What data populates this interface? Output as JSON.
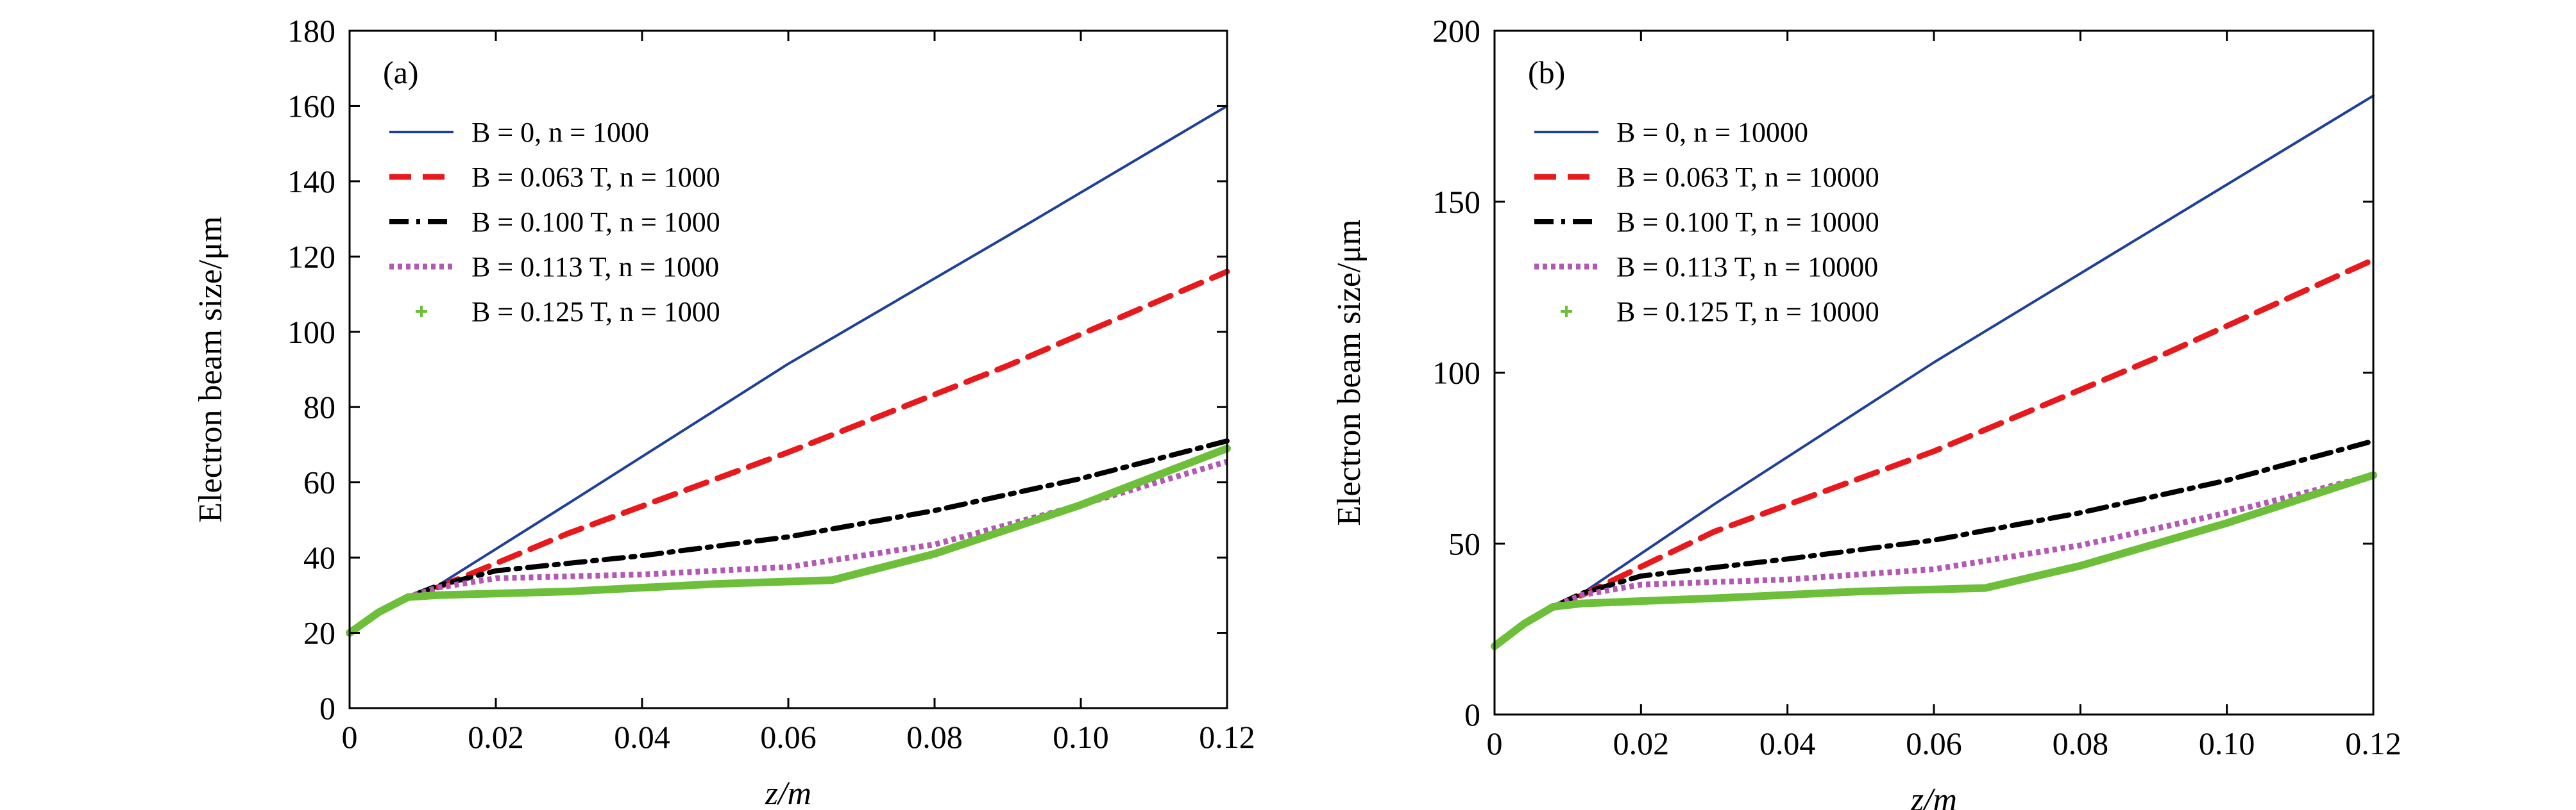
{
  "chart_data": [
    {
      "type": "line",
      "panel_label": "(a)",
      "xlabel": "z/m",
      "ylabel": "Electron beam size/μm",
      "xlim": [
        0,
        0.12
      ],
      "ylim": [
        0,
        180
      ],
      "xticks": [
        0,
        0.02,
        0.04,
        0.06,
        0.08,
        0.1,
        0.12
      ],
      "xtick_labels": [
        "0",
        "0.02",
        "0.04",
        "0.06",
        "0.08",
        "0.10",
        "0.12"
      ],
      "yticks": [
        0,
        20,
        40,
        60,
        80,
        100,
        120,
        140,
        160,
        180
      ],
      "ytick_labels": [
        "0",
        "20",
        "40",
        "60",
        "80",
        "100",
        "120",
        "140",
        "160",
        "180"
      ],
      "grid": false,
      "legend_position": "top-left",
      "series": [
        {
          "name": "B = 0, n = 1000",
          "style": "solid",
          "color": "#1f3f99",
          "x": [
            0,
            0.004,
            0.008,
            0.012,
            0.03,
            0.06,
            0.09,
            0.12
          ],
          "y": [
            20,
            25.5,
            29.5,
            32.5,
            54.5,
            91.5,
            125.5,
            160
          ]
        },
        {
          "name": "B = 0.063 T, n = 1000",
          "style": "dash",
          "color": "#e8191c",
          "x": [
            0,
            0.004,
            0.008,
            0.012,
            0.03,
            0.06,
            0.09,
            0.12
          ],
          "y": [
            20,
            25.5,
            29.5,
            32,
            46.5,
            68,
            91,
            116
          ]
        },
        {
          "name": "B = 0.100 T, n = 1000",
          "style": "dashdot",
          "color": "#000000",
          "x": [
            0,
            0.004,
            0.008,
            0.012,
            0.02,
            0.04,
            0.06,
            0.08,
            0.1,
            0.12
          ],
          "y": [
            20,
            25.5,
            29.5,
            32.5,
            36.5,
            40.5,
            45.5,
            52.5,
            61,
            71
          ]
        },
        {
          "name": "B = 0.113 T, n = 1000",
          "style": "dotted",
          "color": "#b359b3",
          "x": [
            0,
            0.004,
            0.008,
            0.012,
            0.02,
            0.04,
            0.06,
            0.08,
            0.1,
            0.12
          ],
          "y": [
            20,
            25.5,
            29.5,
            32,
            34.5,
            35.5,
            37.5,
            43.5,
            54,
            65.5
          ]
        },
        {
          "name": "B = 0.125 T, n = 1000",
          "style": "plus",
          "color": "#6dbf3a",
          "x": [
            0,
            0.004,
            0.008,
            0.012,
            0.03,
            0.05,
            0.066,
            0.08,
            0.1,
            0.12
          ],
          "y": [
            20,
            25.5,
            29.5,
            30,
            31,
            33,
            34,
            41,
            54,
            69
          ]
        }
      ]
    },
    {
      "type": "line",
      "panel_label": "(b)",
      "xlabel": "z/m",
      "ylabel": "Electron beam size/μm",
      "xlim": [
        0,
        0.12
      ],
      "ylim": [
        0,
        200
      ],
      "xticks": [
        0,
        0.02,
        0.04,
        0.06,
        0.08,
        0.1,
        0.12
      ],
      "xtick_labels": [
        "0",
        "0.02",
        "0.04",
        "0.06",
        "0.08",
        "0.10",
        "0.12"
      ],
      "yticks": [
        0,
        50,
        100,
        150,
        200
      ],
      "ytick_labels": [
        "0",
        "50",
        "100",
        "150",
        "200"
      ],
      "grid": false,
      "legend_position": "top-left",
      "series": [
        {
          "name": "B = 0, n = 10000",
          "style": "solid",
          "color": "#1f3f99",
          "x": [
            0,
            0.004,
            0.008,
            0.012,
            0.03,
            0.06,
            0.09,
            0.12
          ],
          "y": [
            20,
            26.5,
            31.5,
            35.5,
            61.5,
            103,
            142,
            181
          ]
        },
        {
          "name": "B = 0.063 T, n = 10000",
          "style": "dash",
          "color": "#e8191c",
          "x": [
            0,
            0.004,
            0.008,
            0.012,
            0.03,
            0.06,
            0.09,
            0.12
          ],
          "y": [
            20,
            26.5,
            31.5,
            35,
            53.5,
            77,
            104,
            133
          ]
        },
        {
          "name": "B = 0.100 T, n = 10000",
          "style": "dashdot",
          "color": "#000000",
          "x": [
            0,
            0.004,
            0.008,
            0.012,
            0.02,
            0.04,
            0.06,
            0.08,
            0.1,
            0.12
          ],
          "y": [
            20,
            26.5,
            31.5,
            35.5,
            40.5,
            45.5,
            51,
            59,
            68.5,
            80
          ]
        },
        {
          "name": "B = 0.113 T, n = 10000",
          "style": "dotted",
          "color": "#b359b3",
          "x": [
            0,
            0.004,
            0.008,
            0.012,
            0.02,
            0.04,
            0.06,
            0.08,
            0.1,
            0.12
          ],
          "y": [
            20,
            26.5,
            31.5,
            35,
            38,
            39.5,
            42.5,
            49.5,
            59,
            70
          ]
        },
        {
          "name": "B = 0.125 T, n = 10000",
          "style": "plus",
          "color": "#6dbf3a",
          "x": [
            0,
            0.004,
            0.008,
            0.012,
            0.03,
            0.05,
            0.067,
            0.08,
            0.1,
            0.12
          ],
          "y": [
            20,
            26.5,
            31.5,
            32.5,
            34,
            36,
            37,
            43.5,
            56,
            70
          ]
        }
      ]
    }
  ]
}
